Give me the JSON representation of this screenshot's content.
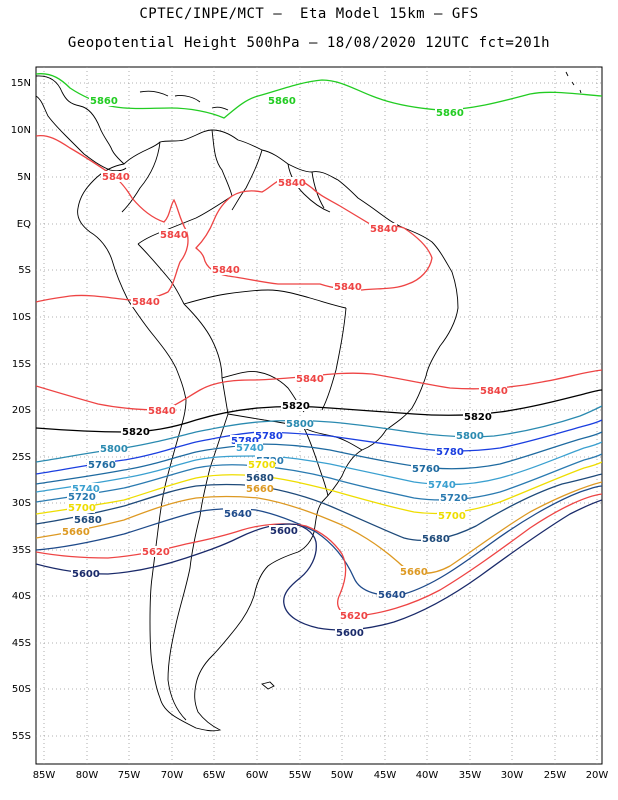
{
  "header": {
    "line1": "CPTEC/INPE/MCT –  Eta Model 15km – GFS",
    "line2": "Geopotential Height 500hPa – 18/08/2020 12UTC fct=201h"
  },
  "axes": {
    "lat_labels": [
      "15N",
      "10N",
      "5N",
      "EQ",
      "5S",
      "10S",
      "15S",
      "20S",
      "25S",
      "30S",
      "35S",
      "40S",
      "45S",
      "50S",
      "55S"
    ],
    "lon_labels": [
      "85W",
      "80W",
      "75W",
      "70W",
      "65W",
      "60W",
      "55W",
      "50W",
      "45W",
      "40W",
      "35W",
      "30W",
      "25W",
      "20W"
    ]
  },
  "contour_colors": {
    "5860": "#22cc22",
    "5840": "#ee4444",
    "5820": "#000000",
    "5800": "#2a8ab0",
    "5780": "#1a3ee0",
    "5760": "#1e6aa0",
    "5740": "#3aa0d0",
    "5720": "#2a7ab0",
    "5700": "#eedd00",
    "5680": "#1e4a7a",
    "5660": "#dd9922",
    "5640": "#1e4a8a",
    "5620": "#ee4444",
    "5600": "#1a2a6a"
  },
  "contour_labels": [
    {
      "text": "5860",
      "level": "5860"
    },
    {
      "text": "5860",
      "level": "5860"
    },
    {
      "text": "5860",
      "level": "5860"
    },
    {
      "text": "5840",
      "level": "5840"
    },
    {
      "text": "5840",
      "level": "5840"
    },
    {
      "text": "5840",
      "level": "5840"
    },
    {
      "text": "5840",
      "level": "5840"
    },
    {
      "text": "5840",
      "level": "5840"
    },
    {
      "text": "5840",
      "level": "5840"
    },
    {
      "text": "5840",
      "level": "5840"
    },
    {
      "text": "5840",
      "level": "5840"
    },
    {
      "text": "5840",
      "level": "5840"
    },
    {
      "text": "5840",
      "level": "5840"
    },
    {
      "text": "5820",
      "level": "5820"
    },
    {
      "text": "5820",
      "level": "5820"
    },
    {
      "text": "5820",
      "level": "5820"
    },
    {
      "text": "5800",
      "level": "5800"
    },
    {
      "text": "5800",
      "level": "5800"
    },
    {
      "text": "5800",
      "level": "5800"
    },
    {
      "text": "5780",
      "level": "5780"
    },
    {
      "text": "5780",
      "level": "5780"
    },
    {
      "text": "5780",
      "level": "5780"
    },
    {
      "text": "5760",
      "level": "5760"
    },
    {
      "text": "5760",
      "level": "5760"
    },
    {
      "text": "5740",
      "level": "5740"
    },
    {
      "text": "5740",
      "level": "5740"
    },
    {
      "text": "5740",
      "level": "5740"
    },
    {
      "text": "5720",
      "level": "5720"
    },
    {
      "text": "5720",
      "level": "5720"
    },
    {
      "text": "5720",
      "level": "5720"
    },
    {
      "text": "5700",
      "level": "5700"
    },
    {
      "text": "5700",
      "level": "5700"
    },
    {
      "text": "5700",
      "level": "5700"
    },
    {
      "text": "5680",
      "level": "5680"
    },
    {
      "text": "5680",
      "level": "5680"
    },
    {
      "text": "5680",
      "level": "5680"
    },
    {
      "text": "5660",
      "level": "5660"
    },
    {
      "text": "5660",
      "level": "5660"
    },
    {
      "text": "5660",
      "level": "5660"
    },
    {
      "text": "5640",
      "level": "5640"
    },
    {
      "text": "5640",
      "level": "5640"
    },
    {
      "text": "5620",
      "level": "5620"
    },
    {
      "text": "5620",
      "level": "5620"
    },
    {
      "text": "5600",
      "level": "5600"
    },
    {
      "text": "5600",
      "level": "5600"
    },
    {
      "text": "5600",
      "level": "5600"
    }
  ]
}
